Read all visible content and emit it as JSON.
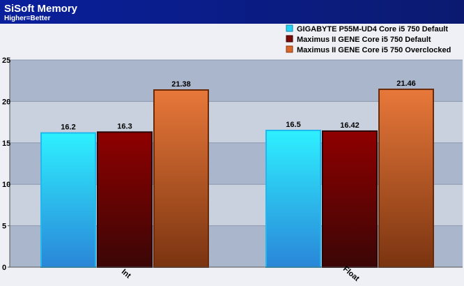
{
  "header": {
    "title": "SiSoft Memory",
    "subtitle": "Higher=Better"
  },
  "colors": {
    "header_bg": "#0a1a8c",
    "plot_band_dark": "#a9b6cb",
    "plot_band_light": "#c9d1de",
    "frame_bg": "#eef0f5"
  },
  "chart_data": {
    "type": "bar",
    "categories": [
      "Int",
      "Float"
    ],
    "series": [
      {
        "name": "GIGABYTE P55M-UD4 Core i5 750 Default",
        "values": [
          16.2,
          16.5
        ],
        "color": "#22d4f4"
      },
      {
        "name": "Maximus II GENE Core i5 750 Default",
        "values": [
          16.3,
          16.42
        ],
        "color": "#7a0a0a"
      },
      {
        "name": "Maximus II GENE Core i5 750 Overclocked",
        "values": [
          21.38,
          21.46
        ],
        "color": "#d8672e"
      }
    ],
    "value_labels": [
      [
        "16.2",
        "16.5"
      ],
      [
        "16.3",
        "16.42"
      ],
      [
        "21.38",
        "21.46"
      ]
    ],
    "ylim": [
      0,
      25
    ],
    "yticks": [
      "0",
      "5",
      "10",
      "15",
      "20",
      "25"
    ],
    "grid": true,
    "legend_position": "top-right"
  }
}
